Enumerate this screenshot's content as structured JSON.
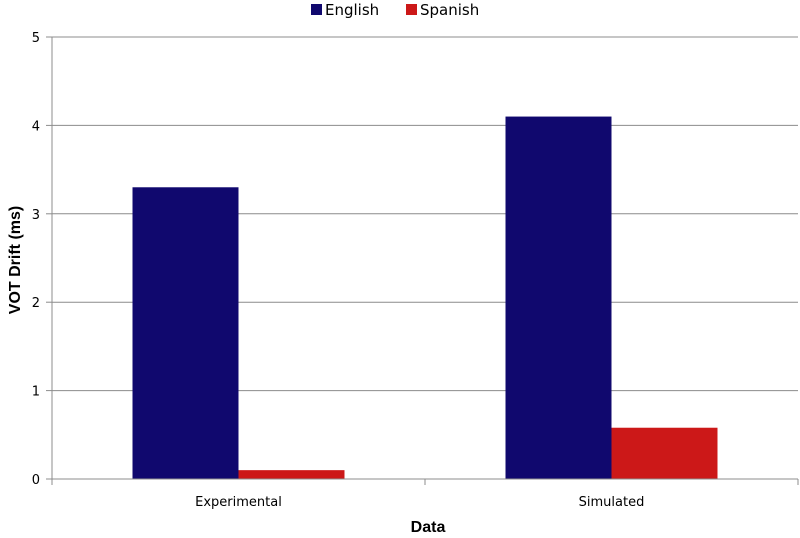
{
  "chart_data": {
    "type": "bar",
    "title": "",
    "xlabel": "Data",
    "ylabel": "VOT Drift (ms)",
    "categories": [
      "Experimental",
      "Simulated"
    ],
    "series": [
      {
        "name": "English",
        "color": "#10086e",
        "values": [
          3.3,
          4.1
        ]
      },
      {
        "name": "Spanish",
        "color": "#cc1818",
        "values": [
          0.1,
          0.58
        ]
      }
    ],
    "ylim": [
      0,
      5
    ],
    "yticks": [
      "0",
      "1",
      "2",
      "3",
      "4",
      "5"
    ],
    "grid": true,
    "legend_position": "top-center"
  }
}
